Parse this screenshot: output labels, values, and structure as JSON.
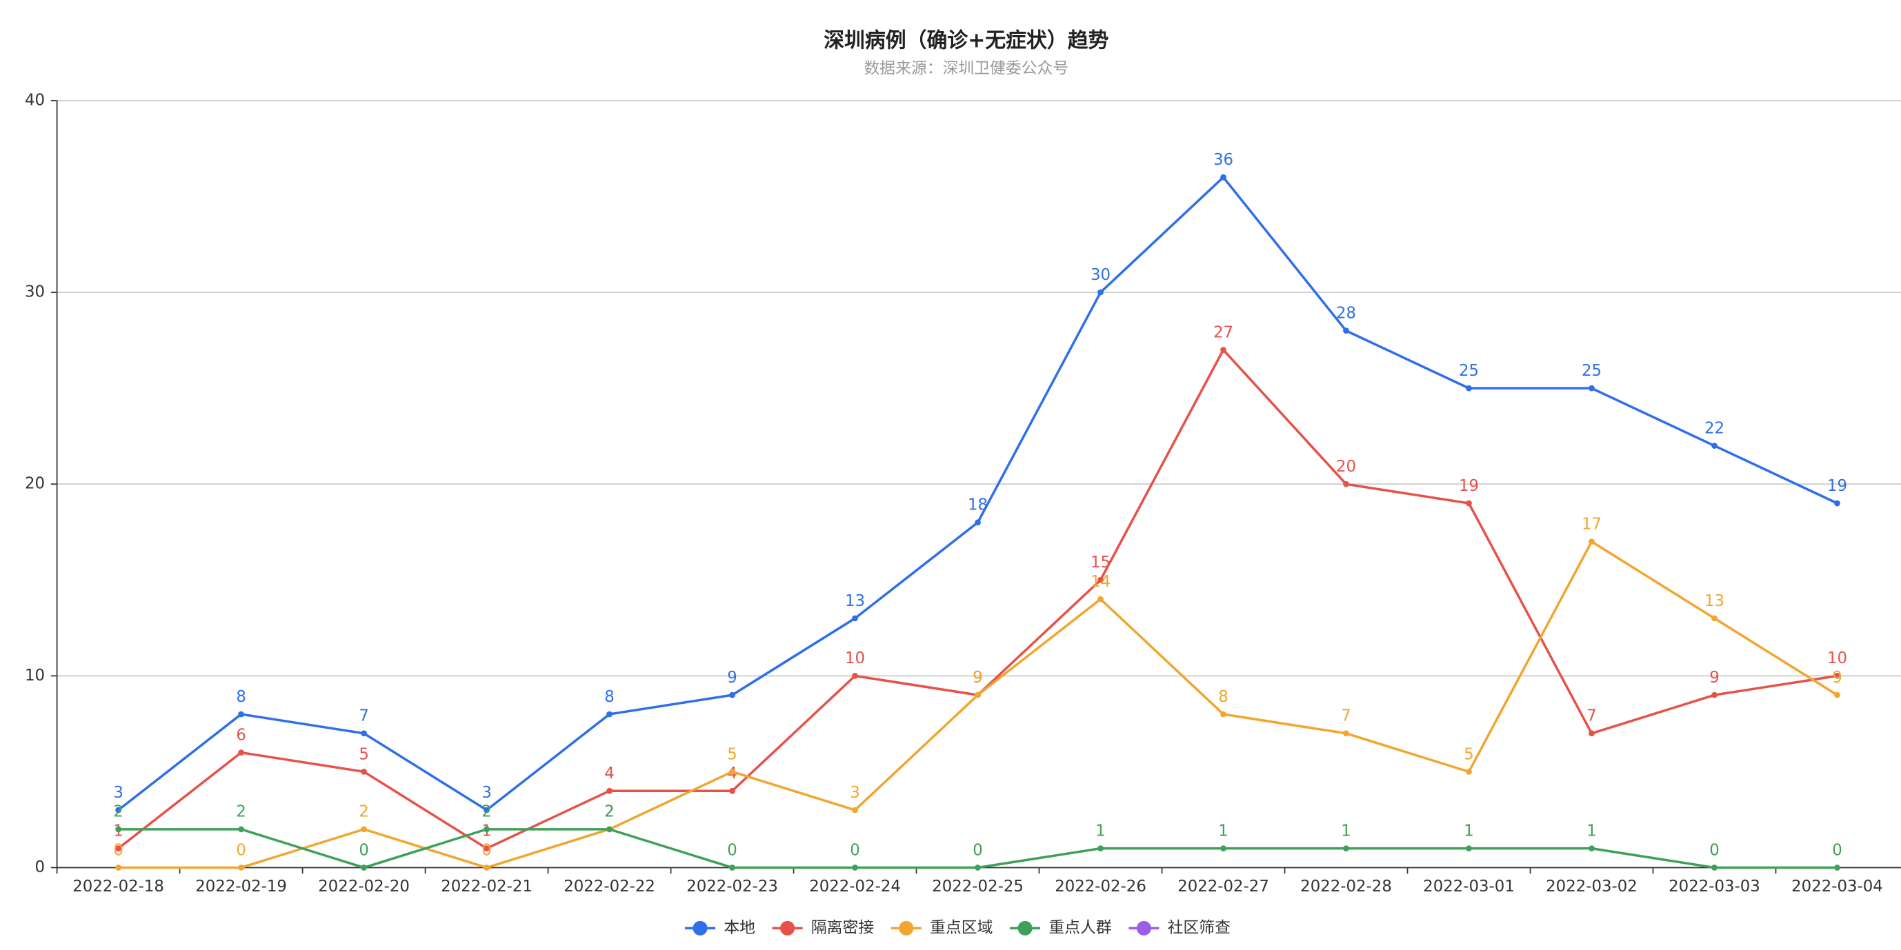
{
  "chart_data": {
    "type": "line",
    "title": "深圳病例（确诊+无症状）趋势",
    "subtitle": "数据来源：深圳卫健委公众号",
    "categories": [
      "2022-02-18",
      "2022-02-19",
      "2022-02-20",
      "2022-02-21",
      "2022-02-22",
      "2022-02-23",
      "2022-02-24",
      "2022-02-25",
      "2022-02-26",
      "2022-02-27",
      "2022-02-28",
      "2022-03-01",
      "2022-03-02",
      "2022-03-03",
      "2022-03-04"
    ],
    "series": [
      {
        "name": "本地",
        "color": "#2f6fe8",
        "values": [
          3,
          8,
          7,
          3,
          8,
          9,
          13,
          18,
          30,
          36,
          28,
          25,
          25,
          22,
          19
        ]
      },
      {
        "name": "隔离密接",
        "color": "#e5524a",
        "values": [
          1,
          6,
          5,
          1,
          4,
          4,
          10,
          9,
          15,
          27,
          20,
          19,
          7,
          9,
          10
        ]
      },
      {
        "name": "重点区域",
        "color": "#f0a630",
        "values": [
          0,
          0,
          2,
          0,
          2,
          5,
          3,
          9,
          14,
          8,
          7,
          5,
          17,
          13,
          9
        ]
      },
      {
        "name": "重点人群",
        "color": "#3fa05a",
        "values": [
          2,
          2,
          0,
          2,
          2,
          0,
          0,
          0,
          1,
          1,
          1,
          1,
          1,
          0,
          0
        ]
      },
      {
        "name": "社区筛查",
        "color": "#9a5ee8",
        "values": [
          null,
          null,
          null,
          null,
          null,
          null,
          null,
          null,
          null,
          null,
          null,
          null,
          null,
          null,
          null
        ]
      }
    ],
    "ylim": [
      0,
      40
    ],
    "yticks": [
      0,
      10,
      20,
      30,
      40
    ],
    "grid": true,
    "legend": "bottom"
  }
}
